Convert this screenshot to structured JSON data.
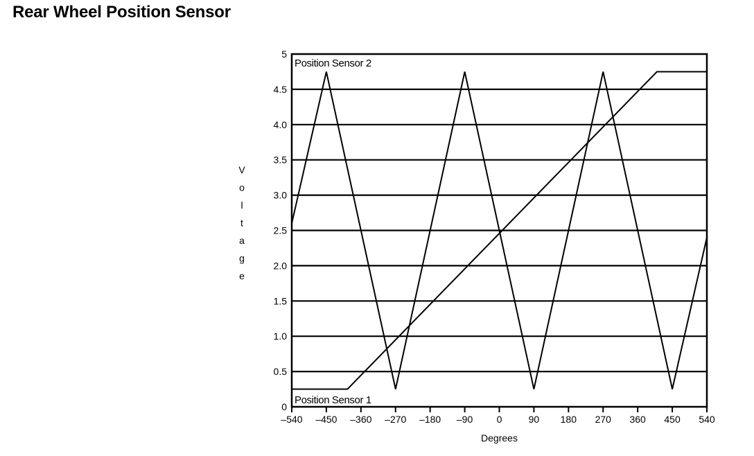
{
  "page": {
    "title": "Rear Wheel Position Sensor"
  },
  "chart_data": {
    "type": "line",
    "title": "",
    "xlabel": "Degrees",
    "ylabel": "Voltage",
    "xlim": [
      -540,
      540
    ],
    "ylim": [
      0,
      5
    ],
    "x_ticks": [
      -540,
      -450,
      -360,
      -270,
      -180,
      -90,
      0,
      90,
      180,
      270,
      360,
      450,
      540
    ],
    "x_tick_labels": [
      "–540",
      "–450",
      "–360",
      "–270",
      "–180",
      "–90",
      "0",
      "90",
      "180",
      "270",
      "360",
      "450",
      "540"
    ],
    "y_ticks": [
      0,
      0.5,
      1.0,
      1.5,
      2.0,
      2.5,
      3.0,
      3.5,
      4.0,
      4.5,
      5
    ],
    "y_tick_labels": [
      "0",
      "0.5",
      "1.0",
      "1.5",
      "2.0",
      "2.5",
      "3.0",
      "3.5",
      "4.0",
      "4.5",
      "5"
    ],
    "grid": "horizontal",
    "series": [
      {
        "name": "Position Sensor 2",
        "color": "#000000",
        "x": [
          -540,
          -450,
          -270,
          -90,
          90,
          270,
          450,
          540
        ],
        "y": [
          2.6,
          4.75,
          0.25,
          4.75,
          0.25,
          4.75,
          0.25,
          2.4
        ]
      },
      {
        "name": "Position Sensor 1",
        "color": "#000000",
        "x": [
          -540,
          -395,
          410,
          540
        ],
        "y": [
          0.25,
          0.25,
          4.75,
          4.75
        ]
      }
    ]
  }
}
